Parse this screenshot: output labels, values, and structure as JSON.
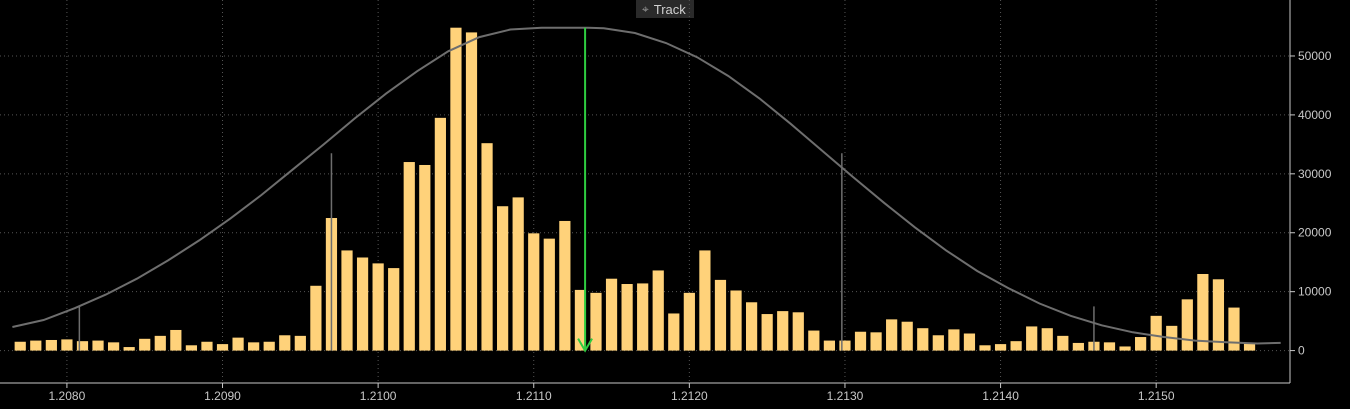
{
  "toolbar": {
    "track_label": "Track",
    "track_icon": "crosshair-icon"
  },
  "colors": {
    "bar": "#ffd27a",
    "curve": "#6e6e6e",
    "marker": "#2ecc40",
    "grid": "#555555",
    "axis": "#c8c8c8",
    "background": "#000000"
  },
  "chart_data": {
    "type": "bar",
    "title": "",
    "xlabel": "",
    "ylabel": "",
    "x_tick_labels": [
      "1.2080",
      "1.2090",
      "1.2100",
      "1.2110",
      "1.2120",
      "1.2130",
      "1.2140",
      "1.2150"
    ],
    "y_tick_labels": [
      "0",
      "10000",
      "20000",
      "30000",
      "40000",
      "50000"
    ],
    "xlim": [
      1.20757,
      1.21586
    ],
    "ylim": [
      -5500,
      59500
    ],
    "grid": true,
    "bin_width": 0.0001,
    "series": [
      {
        "type": "bar",
        "x": [
          1.2077,
          1.2078,
          1.2079,
          1.208,
          1.2081,
          1.2082,
          1.2083,
          1.2084,
          1.2085,
          1.2086,
          1.2087,
          1.2088,
          1.2089,
          1.209,
          1.2091,
          1.2092,
          1.2093,
          1.2094,
          1.2095,
          1.2096,
          1.2097,
          1.2098,
          1.2099,
          1.21,
          1.2101,
          1.2102,
          1.2103,
          1.2104,
          1.2105,
          1.2106,
          1.2107,
          1.2108,
          1.2109,
          1.211,
          1.2111,
          1.2112,
          1.2113,
          1.2114,
          1.2115,
          1.2116,
          1.2117,
          1.2118,
          1.2119,
          1.212,
          1.2121,
          1.2122,
          1.2123,
          1.2124,
          1.2125,
          1.2126,
          1.2127,
          1.2128,
          1.2129,
          1.213,
          1.2131,
          1.2132,
          1.2133,
          1.2134,
          1.2135,
          1.2136,
          1.2137,
          1.2138,
          1.2139,
          1.214,
          1.2141,
          1.2142,
          1.2143,
          1.2144,
          1.2145,
          1.2146,
          1.2147,
          1.2148,
          1.2149,
          1.215,
          1.2151,
          1.2152,
          1.2153,
          1.2154,
          1.2155,
          1.2156
        ],
        "values": [
          1500,
          1700,
          1800,
          1900,
          1600,
          1700,
          1400,
          600,
          2000,
          2500,
          3500,
          900,
          1500,
          1100,
          2200,
          1400,
          1500,
          2600,
          2500,
          11000,
          22500,
          17000,
          15800,
          14800,
          14000,
          32000,
          31500,
          39500,
          54800,
          54000,
          35200,
          24500,
          26000,
          19900,
          19000,
          22000,
          10300,
          9800,
          12200,
          11300,
          11400,
          13600,
          6300,
          9800,
          17000,
          12000,
          10200,
          8200,
          6200,
          6700,
          6500,
          3400,
          1700,
          1700,
          3200,
          3100,
          5300,
          4900,
          3800,
          2600,
          3600,
          2900,
          900,
          1100,
          1600,
          4100,
          3800,
          2500,
          1300,
          1500,
          1400,
          700,
          2300,
          5900,
          4200,
          8700,
          13000,
          12100,
          7300,
          1300
        ]
      },
      {
        "type": "line",
        "name": "",
        "x": [
          1.20765,
          1.20785,
          1.20805,
          1.20825,
          1.20845,
          1.20865,
          1.20885,
          1.20905,
          1.20925,
          1.20945,
          1.20965,
          1.20985,
          1.21005,
          1.21025,
          1.21045,
          1.21065,
          1.21085,
          1.21105,
          1.21125,
          1.21135,
          1.21145,
          1.21165,
          1.21185,
          1.21205,
          1.21225,
          1.21245,
          1.21265,
          1.21285,
          1.21305,
          1.21325,
          1.21345,
          1.21365,
          1.21385,
          1.21405,
          1.21425,
          1.21445,
          1.21465,
          1.21485,
          1.21505,
          1.21525,
          1.21545,
          1.21565,
          1.2158
        ],
        "values": [
          4000,
          5200,
          7200,
          9500,
          12200,
          15300,
          18700,
          22400,
          26400,
          30700,
          35000,
          39400,
          43600,
          47400,
          50800,
          53200,
          54500,
          54800,
          54800,
          54800,
          54700,
          53900,
          52200,
          49800,
          46600,
          42800,
          38500,
          34000,
          29500,
          25100,
          20900,
          17000,
          13500,
          10600,
          8000,
          5900,
          4300,
          3100,
          2300,
          1700,
          1400,
          1200,
          1300
        ]
      }
    ],
    "vertical_lines": [
      {
        "x": 1.20808,
        "y_top": 7500
      },
      {
        "x": 1.2097,
        "y_top": 33500
      },
      {
        "x": 1.21298,
        "y_top": 33500
      },
      {
        "x": 1.2146,
        "y_top": 7500
      }
    ],
    "marker": {
      "type": "arrow",
      "x": 1.21133,
      "y_top": 54800,
      "y_bottom": 0
    },
    "legend": "none"
  }
}
